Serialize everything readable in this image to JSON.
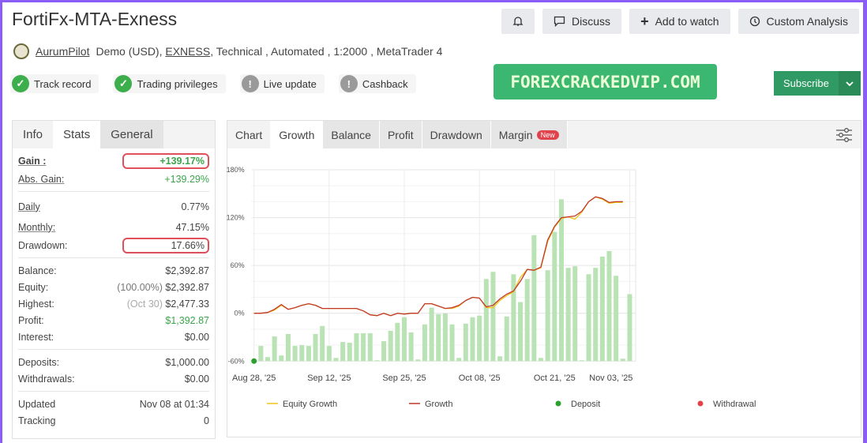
{
  "header": {
    "title": "FortiFx-MTA-Exness",
    "author": "AurumPilot",
    "account": "Demo (USD),",
    "broker": "EXNESS",
    "details": ", Technical , Automated , 1:2000 , MetaTrader 4"
  },
  "badges": [
    {
      "label": "Track record",
      "status": "ok"
    },
    {
      "label": "Trading privileges",
      "status": "ok"
    },
    {
      "label": "Live update",
      "status": "warn"
    },
    {
      "label": "Cashback",
      "status": "warn"
    }
  ],
  "buttons": {
    "discuss": "Discuss",
    "watch": "Add to watch",
    "analysis": "Custom Analysis",
    "subscribe": "Subscribe"
  },
  "promo": "FOREXCRACKEDVIP.COM",
  "left_tabs": [
    "Info",
    "Stats",
    "General"
  ],
  "stats": {
    "gain": {
      "label": "Gain :",
      "value": "+139.17%"
    },
    "abs_gain": {
      "label": "Abs. Gain:",
      "value": "+139.29%"
    },
    "daily": {
      "label": "Daily",
      "value": "0.77%"
    },
    "monthly": {
      "label": "Monthly:",
      "value": "47.15%"
    },
    "drawdown": {
      "label": "Drawdown:",
      "value": "17.66%"
    },
    "balance": {
      "label": "Balance:",
      "value": "$2,392.87"
    },
    "equity": {
      "label": "Equity:",
      "note": "(100.00%)",
      "value": "$2,392.87"
    },
    "highest": {
      "label": "Highest:",
      "note": "(Oct 30)",
      "value": "$2,477.33"
    },
    "profit": {
      "label": "Profit:",
      "value": "$1,392.87"
    },
    "interest": {
      "label": "Interest:",
      "value": "$0.00"
    },
    "deposits": {
      "label": "Deposits:",
      "value": "$1,000.00"
    },
    "withdrawals": {
      "label": "Withdrawals:",
      "value": "$0.00"
    },
    "updated": {
      "label": "Updated",
      "value": "Nov 08 at 01:34"
    },
    "tracking": {
      "label": "Tracking",
      "value": "0"
    }
  },
  "chart_tabs": {
    "items": [
      "Chart",
      "Growth",
      "Balance",
      "Profit",
      "Drawdown",
      "Margin"
    ],
    "new_badge": "New",
    "active": "Growth"
  },
  "colors": {
    "accent": "#3cb771",
    "equity": "#f0c419",
    "growth": "#c0392b",
    "bars": "#b9e3b4",
    "deposit": "#2ca02c",
    "withdrawal": "#e0434b",
    "highlight": "#e0505a"
  },
  "chart_data": {
    "type": "line",
    "ylim": [
      -60,
      180
    ],
    "yticks": [
      "180%",
      "120%",
      "60%",
      "0%",
      "-60%"
    ],
    "ytick_values": [
      180,
      120,
      60,
      0,
      -60
    ],
    "xticks": [
      {
        "label": "Aug 28, '25",
        "index": 0
      },
      {
        "label": "Sep 12, '25",
        "index": 11
      },
      {
        "label": "Sep 25, '25",
        "index": 22
      },
      {
        "label": "Oct 08, '25",
        "index": 33
      },
      {
        "label": "Oct 21, '25",
        "index": 44
      },
      {
        "label": "Nov 03, '25",
        "index": 55
      }
    ],
    "bars": [
      -41,
      -55,
      -29,
      -53,
      -26,
      -41,
      -40,
      -41,
      -26,
      -16,
      -41,
      -56,
      -36,
      -37,
      -25,
      -25,
      -25,
      -59,
      -35,
      -22,
      -12,
      -5,
      -24,
      -58,
      -14,
      7,
      -1,
      0,
      -14,
      -56,
      -13,
      -5,
      -3,
      43,
      52,
      -54,
      -4,
      49,
      14,
      43,
      98,
      -56,
      54,
      102,
      143,
      57,
      59,
      -59,
      49,
      57,
      71,
      78,
      47,
      -57,
      24
    ],
    "growth": [
      0,
      0,
      1,
      5,
      11,
      5,
      7,
      10,
      12,
      10,
      6,
      6,
      6,
      6,
      6,
      6,
      3,
      -2,
      -3,
      0,
      -3,
      0,
      -1,
      0,
      0,
      12,
      12,
      9,
      6,
      7,
      10,
      16,
      20,
      19,
      8,
      10,
      18,
      24,
      28,
      40,
      55,
      54,
      58,
      92,
      109,
      120,
      121,
      122,
      128,
      140,
      146,
      144,
      139,
      140,
      140
    ],
    "equity": [
      0,
      0,
      1,
      4,
      10,
      5,
      7,
      10,
      12,
      10,
      6,
      6,
      6,
      6,
      6,
      6,
      3,
      -2,
      -3,
      0,
      -3,
      0,
      -1,
      0,
      0,
      12,
      12,
      9,
      6,
      6,
      9,
      16,
      20,
      19,
      7,
      7,
      16,
      22,
      27,
      45,
      55,
      54,
      57,
      90,
      108,
      119,
      121,
      118,
      127,
      140,
      146,
      143,
      138,
      139,
      139
    ],
    "deposits": [
      {
        "index": 0,
        "value": -60
      }
    ],
    "legend": [
      "Equity Growth",
      "Growth",
      "Deposit",
      "Withdrawal"
    ],
    "legend_position": "bottom",
    "grid": true
  }
}
